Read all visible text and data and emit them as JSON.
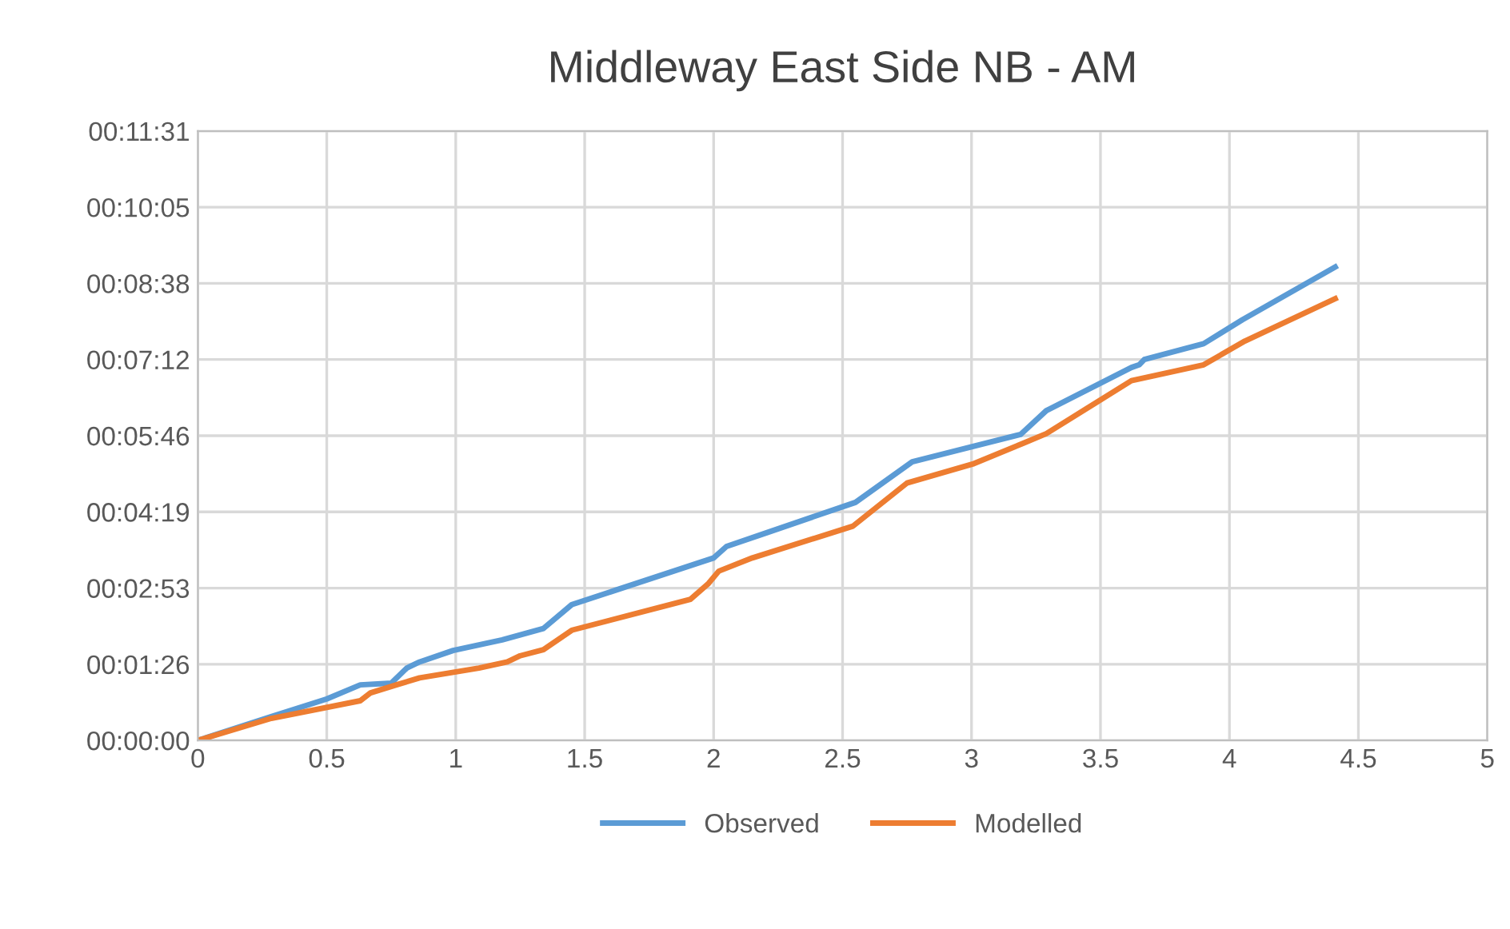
{
  "chart_data": {
    "type": "line",
    "title": "Middleway East Side NB - AM",
    "xlim": [
      0,
      5
    ],
    "xticks": [
      0,
      0.5,
      1,
      1.5,
      2,
      2.5,
      3,
      3.5,
      4,
      4.5,
      5
    ],
    "ylim": [
      0,
      691.2
    ],
    "yticks": [
      {
        "value": 0,
        "label": "00:00:00"
      },
      {
        "value": 86.4,
        "label": "00:01:26"
      },
      {
        "value": 172.8,
        "label": "00:02:53"
      },
      {
        "value": 259.2,
        "label": "00:04:19"
      },
      {
        "value": 345.6,
        "label": "00:05:46"
      },
      {
        "value": 432,
        "label": "00:07:12"
      },
      {
        "value": 518.4,
        "label": "00:08:38"
      },
      {
        "value": 604.8,
        "label": "00:10:05"
      },
      {
        "value": 691.2,
        "label": "00:11:31"
      }
    ],
    "grid": true,
    "legend": "bottom",
    "marker": "none",
    "line_style": "solid",
    "series": [
      {
        "name": "Observed",
        "color": "#5b9bd5",
        "x": [
          0,
          0.285,
          0.5,
          0.63,
          0.75,
          0.81,
          0.86,
          0.99,
          1.18,
          1.34,
          1.45,
          2.0,
          2.05,
          2.21,
          2.55,
          2.77,
          3.19,
          3.29,
          3.62,
          3.65,
          3.67,
          3.9,
          4.05,
          4.41
        ],
        "values": [
          0,
          27,
          47,
          63,
          65,
          82,
          89,
          102,
          114,
          127,
          154,
          207,
          220,
          236,
          270,
          316,
          347,
          374,
          423,
          426,
          432,
          450,
          477,
          537
        ]
      },
      {
        "name": "Modelled",
        "color": "#ed7d31",
        "x": [
          0,
          0.285,
          0.63,
          0.67,
          0.77,
          0.86,
          1.09,
          1.2,
          1.25,
          1.34,
          1.45,
          1.91,
          1.98,
          2.02,
          2.15,
          2.54,
          2.75,
          3.01,
          3.2,
          3.29,
          3.62,
          3.73,
          3.9,
          4.06,
          4.41
        ],
        "values": [
          0,
          25,
          45,
          54,
          63,
          71,
          82,
          89,
          96,
          103,
          125,
          160,
          178,
          192,
          207,
          243,
          292,
          314,
          337,
          348,
          408,
          415,
          426,
          453,
          501
        ]
      }
    ]
  }
}
